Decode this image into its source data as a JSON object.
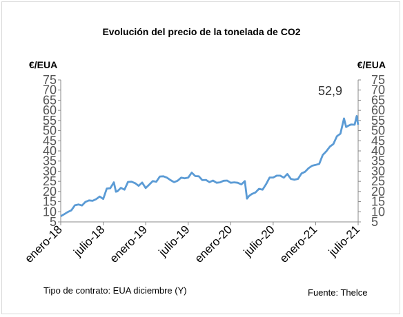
{
  "chart_data": {
    "type": "line",
    "title": "Evolución del precio de la tonelada de CO2",
    "ylabel_left": "€/EUA",
    "ylabel_right": "€/EUA",
    "ylim": [
      5,
      75
    ],
    "yticks": [
      5,
      10,
      15,
      20,
      25,
      30,
      35,
      40,
      45,
      50,
      55,
      60,
      65,
      70,
      75
    ],
    "xlim": [
      "2018-01",
      "2021-07"
    ],
    "xtick_labels": [
      "enero-18",
      "julio-18",
      "enero-19",
      "julio-19",
      "enero-20",
      "julio-20",
      "enero-21",
      "julio-21"
    ],
    "xtick_positions": [
      0,
      6,
      12,
      18,
      24,
      30,
      36,
      42
    ],
    "grid": false,
    "color": "#5b9bd5",
    "annotation": "52,9",
    "series": [
      {
        "x": [
          0,
          0.5,
          1,
          1.5,
          2,
          2.5,
          3,
          3.5,
          4,
          4.5,
          5,
          5.5,
          6,
          6.5,
          7,
          7.5,
          7.8,
          8,
          8.5,
          9,
          9.5,
          10,
          10.5,
          11,
          11.5,
          12,
          12.5,
          13,
          13.5,
          14,
          14.5,
          15,
          15.5,
          16,
          16.5,
          17,
          17.5,
          18,
          18.5,
          19,
          19.5,
          20,
          20.5,
          21,
          21.5,
          22,
          22.5,
          23,
          23.5,
          24,
          24.5,
          25,
          25.5,
          26,
          26.3,
          26.6,
          27,
          27.5,
          28,
          28.5,
          29,
          29.5,
          30,
          30.5,
          31,
          31.5,
          32,
          32.5,
          33,
          33.5,
          34,
          34.5,
          35,
          35.5,
          36,
          36.5,
          37,
          37.5,
          38,
          38.5,
          39,
          39.5,
          40,
          40.3,
          40.6,
          41,
          41.5,
          41.8,
          42
        ],
        "values": [
          7.8,
          8.8,
          9.9,
          10.7,
          13.2,
          13.6,
          13.1,
          14.9,
          15.6,
          15.4,
          16.2,
          17.5,
          16.3,
          21.4,
          21.6,
          24.5,
          19.9,
          20.1,
          21.8,
          20.9,
          24.7,
          24.8,
          24.1,
          22.8,
          24.4,
          21.7,
          23.4,
          25.1,
          24.8,
          27.4,
          27.5,
          26.8,
          25.6,
          24.6,
          25.3,
          26.8,
          26.5,
          26.8,
          29.3,
          27.6,
          27.5,
          25.6,
          25.7,
          24.6,
          25.4,
          24.3,
          24.5,
          25.3,
          25.4,
          24.3,
          24.5,
          24.3,
          23.5,
          25.1,
          16.5,
          17.8,
          18.8,
          19.5,
          21.3,
          20.9,
          23.6,
          26.9,
          26.9,
          27.8,
          27.8,
          26.8,
          28.6,
          26.2,
          25.8,
          26.2,
          28.9,
          29.7,
          31.5,
          32.7,
          33.1,
          33.6,
          38.0,
          39.8,
          42.1,
          43.4,
          47.2,
          48.5,
          56.0,
          51.8,
          52.4,
          53.0,
          52.9,
          57.2,
          52.9
        ]
      }
    ]
  },
  "footer": {
    "contract": "Tipo de contrato: EUA diciembre (Y)",
    "source": "Fuente: Thelce"
  }
}
